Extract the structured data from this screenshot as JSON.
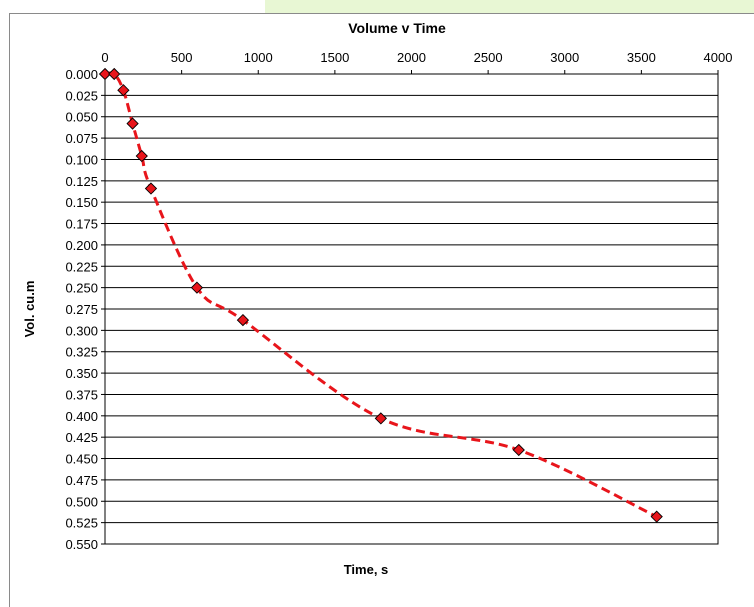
{
  "chart_data": {
    "type": "scatter",
    "title": "Volume v Time",
    "xlabel": "Time, s",
    "ylabel": "Vol. cu.m",
    "xlim": [
      0,
      4000
    ],
    "ylim": [
      0,
      0.55
    ],
    "x_axis_position": "top",
    "y_axis_reversed": true,
    "grid": "horizontal",
    "legend": "none",
    "x_ticks": [
      "0",
      "500",
      "1000",
      "1500",
      "2000",
      "2500",
      "3000",
      "3500",
      "4000"
    ],
    "y_ticks": [
      "0.000",
      "0.025",
      "0.050",
      "0.075",
      "0.100",
      "0.125",
      "0.150",
      "0.175",
      "0.200",
      "0.225",
      "0.250",
      "0.275",
      "0.300",
      "0.325",
      "0.350",
      "0.375",
      "0.400",
      "0.425",
      "0.450",
      "0.475",
      "0.500",
      "0.525",
      "0.550"
    ],
    "series": [
      {
        "x": [
          0,
          60,
          120,
          180,
          240,
          300,
          600,
          900,
          1800,
          2700,
          3600
        ],
        "y": [
          0.0,
          0.0,
          0.019,
          0.058,
          0.096,
          0.134,
          0.25,
          0.288,
          0.403,
          0.44,
          0.518
        ],
        "marker": "diamond",
        "marker_color": "#e8151b",
        "line_style": "dashed smooth",
        "line_color": "#e8151b"
      }
    ]
  }
}
